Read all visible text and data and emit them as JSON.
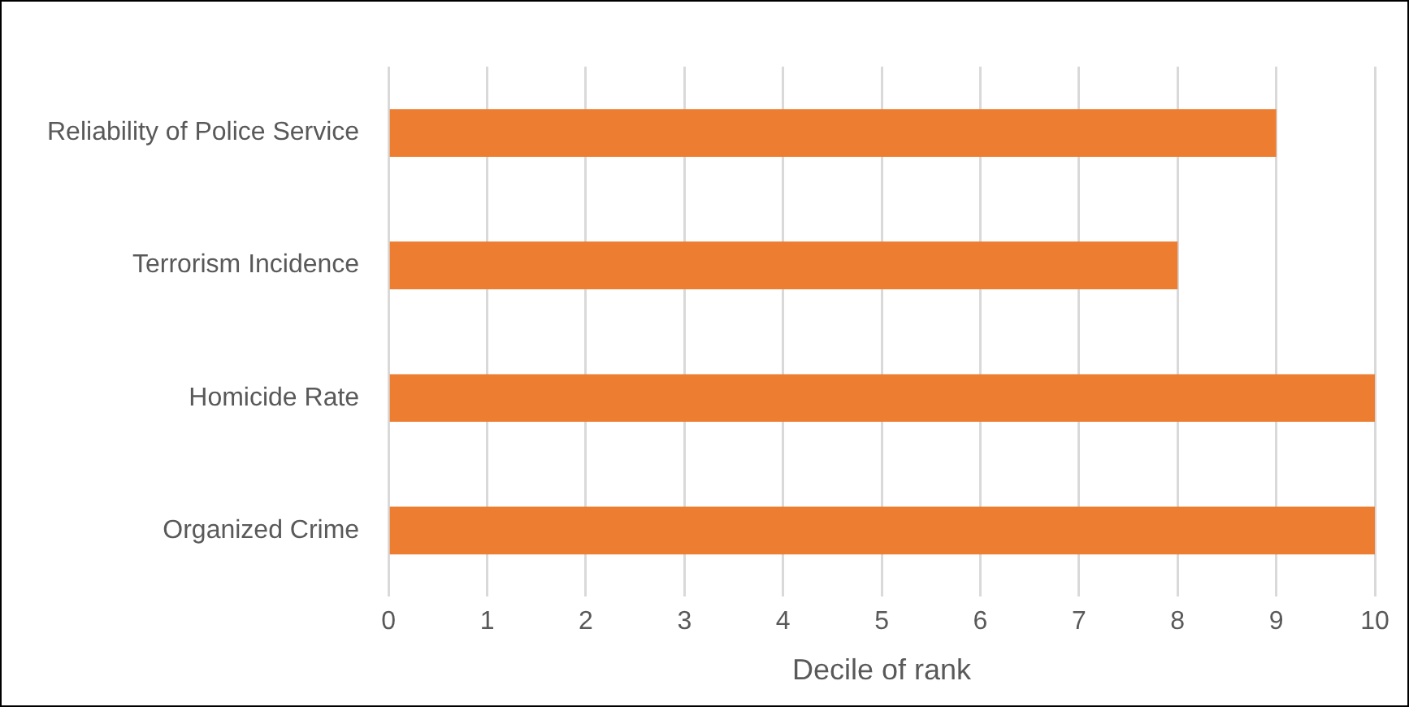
{
  "chart_data": {
    "type": "bar",
    "orientation": "horizontal",
    "xlabel": "Decile of rank",
    "categories": [
      "Reliability of Police Service",
      "Terrorism Incidence",
      "Homicide Rate",
      "Organized Crime"
    ],
    "values": [
      9,
      8,
      10,
      10
    ],
    "color": "#ed7d31",
    "xlim": [
      0,
      10
    ],
    "xticks": [
      0,
      1,
      2,
      3,
      4,
      5,
      6,
      7,
      8,
      9,
      10
    ],
    "grid": "x"
  }
}
